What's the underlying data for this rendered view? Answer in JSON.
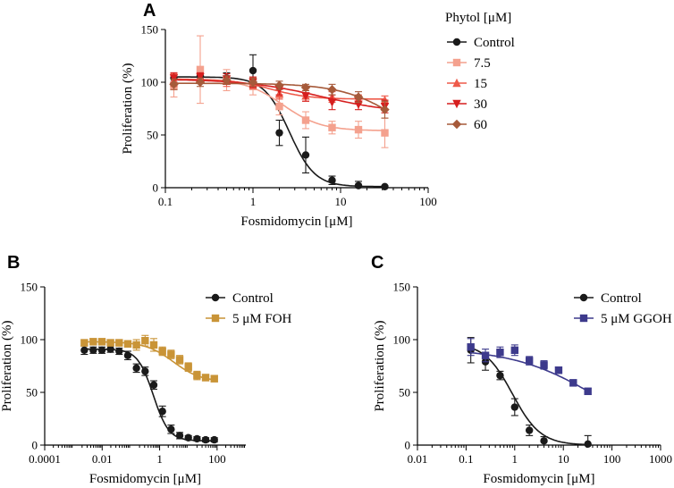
{
  "chart_data": [
    {
      "panel": "A",
      "type": "scatter",
      "xscale": "log",
      "xlabel": "Fosmidomycin [μM]",
      "ylabel": "Proliferation (%)",
      "xlim": [
        0.1,
        100
      ],
      "ylim": [
        0,
        150
      ],
      "xticks": [
        0.1,
        1,
        10,
        100
      ],
      "xtick_labels": [
        "0.1",
        "1",
        "10",
        "100"
      ],
      "yticks": [
        0,
        50,
        100,
        150
      ],
      "legend_title": "Phytol [μM]",
      "legend_position": "right",
      "series": [
        {
          "name": "Control",
          "color": "#1a1a1a",
          "marker": "circle",
          "x": [
            0.125,
            0.25,
            0.5,
            1,
            2,
            4,
            8,
            16,
            32
          ],
          "y": [
            104,
            106,
            104,
            111,
            52,
            31,
            7,
            2,
            1
          ],
          "err": [
            4,
            3,
            5,
            15,
            12,
            17,
            4,
            4,
            1
          ],
          "fit": {
            "top": 105,
            "bottom": 1,
            "ic50": 2.6,
            "hill": 3.0
          }
        },
        {
          "name": "7.5",
          "color": "#f4a18e",
          "marker": "square",
          "x": [
            0.125,
            0.25,
            0.5,
            1,
            2,
            4,
            8,
            16,
            32
          ],
          "y": [
            96,
            112,
            102,
            96,
            77,
            64,
            57,
            55,
            52
          ],
          "err": [
            10,
            32,
            10,
            8,
            8,
            8,
            6,
            8,
            14
          ],
          "fit": {
            "top": 103,
            "bottom": 54,
            "ic50": 2.2,
            "hill": 2.0
          }
        },
        {
          "name": "15",
          "color": "#ee5a4a",
          "marker": "triangle",
          "x": [
            0.125,
            0.25,
            0.5,
            1,
            2,
            4,
            8,
            16,
            32
          ],
          "y": [
            102,
            104,
            101,
            99,
            89,
            87,
            86,
            84,
            83
          ],
          "err": [
            6,
            4,
            5,
            5,
            5,
            5,
            5,
            4,
            4
          ],
          "fit": {
            "top": 103,
            "bottom": 84,
            "ic50": 1.6,
            "hill": 2.0
          }
        },
        {
          "name": "30",
          "color": "#d61e1e",
          "marker": "triangle-down",
          "x": [
            0.125,
            0.25,
            0.5,
            1,
            2,
            4,
            8,
            16,
            32
          ],
          "y": [
            104,
            105,
            103,
            100,
            93,
            87,
            81,
            79,
            77
          ],
          "err": [
            5,
            4,
            5,
            5,
            5,
            5,
            7,
            5,
            6
          ],
          "fit": {
            "top": 103,
            "bottom": 70,
            "ic50": 6.0,
            "hill": 1.0
          }
        },
        {
          "name": "60",
          "color": "#a65a3a",
          "marker": "diamond",
          "x": [
            0.125,
            0.25,
            0.5,
            1,
            2,
            4,
            8,
            16,
            32
          ],
          "y": [
            98,
            100,
            102,
            100,
            97,
            95,
            93,
            86,
            74
          ],
          "err": [
            5,
            4,
            4,
            4,
            4,
            3,
            5,
            5,
            8
          ],
          "fit": {
            "top": 99,
            "bottom": 30,
            "ic50": 50,
            "hill": 1.3
          }
        }
      ]
    },
    {
      "panel": "B",
      "type": "scatter",
      "xscale": "log",
      "xlabel": "Fosmidomycin [μM]",
      "ylabel": "Proliferation (%)",
      "xlim": [
        0.0001,
        1000
      ],
      "ylim": [
        0,
        150
      ],
      "xticks": [
        0.0001,
        0.01,
        1,
        100
      ],
      "xtick_labels": [
        "0.0001",
        "0.01",
        "1",
        "100"
      ],
      "yticks": [
        0,
        50,
        100,
        150
      ],
      "legend_position": "top-right",
      "series": [
        {
          "name": "Control",
          "color": "#1a1a1a",
          "marker": "circle",
          "x": [
            0.0024,
            0.0049,
            0.0098,
            0.0195,
            0.039,
            0.078,
            0.156,
            0.3125,
            0.625,
            1.25,
            2.5,
            5,
            10,
            20,
            40,
            80
          ],
          "y": [
            90,
            90,
            90,
            91,
            89,
            85,
            73,
            70,
            57,
            32,
            15,
            9,
            7,
            6,
            5,
            5
          ],
          "err": [
            4,
            3,
            3,
            3,
            3,
            4,
            4,
            4,
            4,
            5,
            4,
            3,
            2,
            2,
            2,
            2
          ],
          "fit": {
            "top": 91,
            "bottom": 4,
            "ic50": 0.6,
            "hill": 1.6
          }
        },
        {
          "name": "5 μM FOH",
          "color": "#c99437",
          "marker": "square",
          "x": [
            0.0024,
            0.0049,
            0.0098,
            0.0195,
            0.039,
            0.078,
            0.156,
            0.3125,
            0.625,
            1.25,
            2.5,
            5,
            10,
            20,
            40,
            80
          ],
          "y": [
            97,
            98,
            98,
            97,
            97,
            96,
            95,
            99,
            95,
            89,
            86,
            81,
            74,
            66,
            64,
            63
          ],
          "err": [
            3,
            3,
            3,
            3,
            3,
            3,
            5,
            5,
            6,
            4,
            4,
            4,
            4,
            4,
            3,
            3
          ],
          "fit": {
            "top": 98,
            "bottom": 60,
            "ic50": 3.0,
            "hill": 0.9
          }
        }
      ]
    },
    {
      "panel": "C",
      "type": "scatter",
      "xscale": "log",
      "xlabel": "Fosmidomycin [μM]",
      "ylabel": "Proliferation (%)",
      "xlim": [
        0.01,
        1000
      ],
      "ylim": [
        0,
        150
      ],
      "xticks": [
        0.01,
        0.1,
        1,
        10,
        100,
        1000
      ],
      "xtick_labels": [
        "0.01",
        "0.1",
        "1",
        "10",
        "100",
        "1000"
      ],
      "yticks": [
        0,
        50,
        100,
        150
      ],
      "legend_position": "top-right",
      "series": [
        {
          "name": "Control",
          "color": "#1a1a1a",
          "marker": "circle",
          "x": [
            0.125,
            0.25,
            0.5,
            1,
            2,
            4,
            32
          ],
          "y": [
            90,
            79,
            66,
            36,
            14,
            4,
            1
          ],
          "err": [
            12,
            8,
            4,
            8,
            5,
            4,
            8
          ],
          "fit": {
            "top": 97,
            "bottom": 0,
            "ic50": 0.9,
            "hill": 1.5
          }
        },
        {
          "name": "5 μM GGOH",
          "color": "#3d3a8c",
          "marker": "square",
          "x": [
            0.125,
            0.25,
            0.5,
            1,
            2,
            4,
            8,
            16,
            32
          ],
          "y": [
            93,
            85,
            88,
            90,
            80,
            76,
            71,
            59,
            51
          ],
          "err": [
            8,
            6,
            5,
            5,
            4,
            4,
            3,
            3,
            3
          ],
          "fit": {
            "top": 92,
            "bottom": 0,
            "ic50": 50,
            "hill": 0.5
          }
        }
      ]
    }
  ],
  "panels": {
    "A": {
      "letter": "A"
    },
    "B": {
      "letter": "B"
    },
    "C": {
      "letter": "C"
    }
  }
}
